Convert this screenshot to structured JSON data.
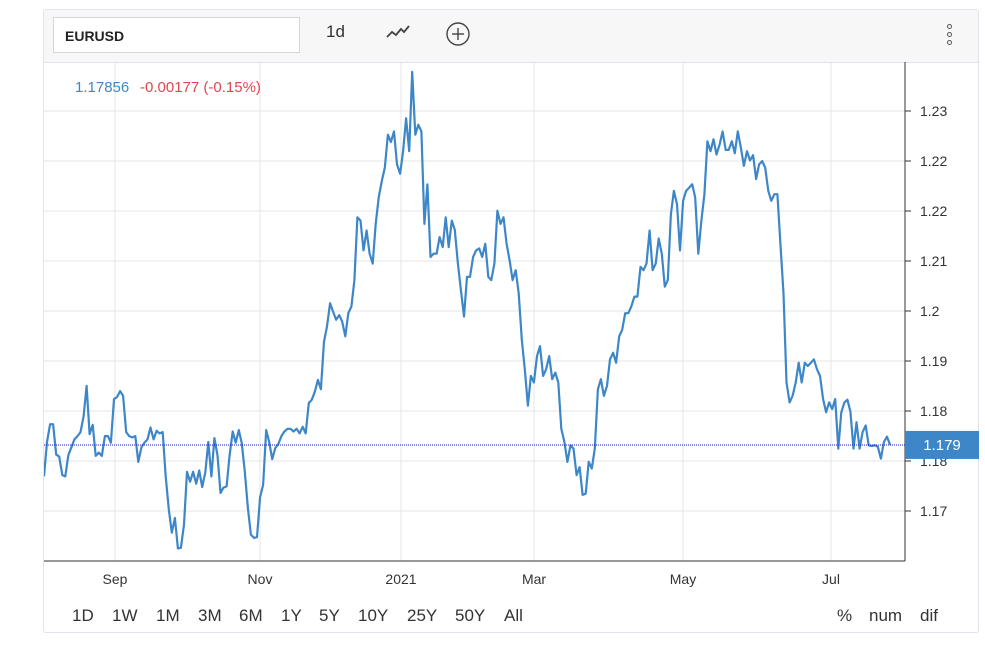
{
  "toolbar": {
    "symbol": "EURUSD",
    "interval": "1d",
    "icons": [
      "line-chart-style-icon",
      "add-compare-icon",
      "more-options-icon"
    ]
  },
  "quote": {
    "price": "1.17856",
    "change": "-0.00177 (-0.15%)",
    "price_color": "#3d87c8",
    "change_color": "#e0474c"
  },
  "price_label": "1.179",
  "ranges": [
    "1D",
    "1W",
    "1M",
    "3M",
    "6M",
    "1Y",
    "5Y",
    "10Y",
    "25Y",
    "50Y",
    "All"
  ],
  "modes": [
    "%",
    "num",
    "dif"
  ],
  "colors": {
    "line": "#3d87c8",
    "price_tag": "#3d87c8",
    "grid": "#e6e6e6"
  },
  "chart_data": {
    "type": "line",
    "x_tick_labels": [
      "Sep",
      "Nov",
      "2021",
      "Mar",
      "May",
      "Jul"
    ],
    "y_tick_labels": [
      "1.17",
      "1.18",
      "1.18",
      "1.19",
      "1.2",
      "1.21",
      "1.22",
      "1.22",
      "1.23"
    ],
    "ylim": [
      1.161,
      1.2365
    ],
    "grid": true,
    "last_value": 1.17856,
    "series": [
      {
        "values": [
          1.1738,
          1.179,
          1.1817,
          1.1817,
          1.1771,
          1.1768,
          1.174,
          1.1738,
          1.177,
          1.1782,
          1.1794,
          1.1799,
          1.1805,
          1.1829,
          1.1875,
          1.1802,
          1.1816,
          1.1769,
          1.1774,
          1.1769,
          1.1799,
          1.1799,
          1.1789,
          1.1855,
          1.1858,
          1.1867,
          1.186,
          1.1805,
          1.1799,
          1.1797,
          1.1799,
          1.176,
          1.1782,
          1.1789,
          1.1794,
          1.1812,
          1.1794,
          1.1807,
          1.1803,
          1.1805,
          1.1738,
          1.1688,
          1.1653,
          1.1675,
          1.1629,
          1.163,
          1.1665,
          1.1745,
          1.173,
          1.1745,
          1.1727,
          1.1747,
          1.1722,
          1.1744,
          1.179,
          1.1738,
          1.1796,
          1.177,
          1.1713,
          1.1721,
          1.1723,
          1.177,
          1.1806,
          1.1789,
          1.1808,
          1.1788,
          1.1745,
          1.169,
          1.165,
          1.1645,
          1.1646,
          1.1707,
          1.1725,
          1.1808,
          1.179,
          1.1764,
          1.1781,
          1.1787,
          1.1799,
          1.1806,
          1.181,
          1.181,
          1.1806,
          1.181,
          1.1803,
          1.1813,
          1.1803,
          1.1849,
          1.1854,
          1.1866,
          1.1884,
          1.187,
          1.1942,
          1.1965,
          1.2,
          1.1987,
          1.1975,
          1.1982,
          1.1972,
          1.195,
          1.1985,
          1.1995,
          1.2035,
          1.213,
          1.2125,
          1.208,
          1.211,
          1.2075,
          1.206,
          1.212,
          1.216,
          1.2185,
          1.2205,
          1.2255,
          1.2244,
          1.226,
          1.221,
          1.2196,
          1.223,
          1.228,
          1.223,
          1.235,
          1.2255,
          1.227,
          1.226,
          1.212,
          1.218,
          1.207,
          1.2075,
          1.2075,
          1.21,
          1.2085,
          1.213,
          1.2085,
          1.2125,
          1.2111,
          1.206,
          1.202,
          1.198,
          1.204,
          1.204,
          1.207,
          1.208,
          1.2083,
          1.207,
          1.209,
          1.204,
          1.2035,
          1.206,
          1.214,
          1.212,
          1.213,
          1.209,
          1.2065,
          1.2035,
          1.205,
          1.2015,
          1.1945,
          1.19,
          1.1845,
          1.189,
          1.188,
          1.192,
          1.1935,
          1.189,
          1.19,
          1.192,
          1.1885,
          1.1895,
          1.188,
          1.181,
          1.179,
          1.176,
          1.1785,
          1.178,
          1.174,
          1.1752,
          1.171,
          1.1712,
          1.176,
          1.175,
          1.178,
          1.187,
          1.1885,
          1.186,
          1.1875,
          1.1915,
          1.1925,
          1.191,
          1.195,
          1.196,
          1.1985,
          1.1985,
          1.1995,
          1.201,
          1.201,
          1.2055,
          1.205,
          1.206,
          1.211,
          1.205,
          1.206,
          1.2098,
          1.2075,
          1.2025,
          1.2035,
          1.2135,
          1.217,
          1.215,
          1.208,
          1.2155,
          1.217,
          1.2175,
          1.218,
          1.216,
          1.2075,
          1.2124,
          1.2165,
          1.2245,
          1.223,
          1.2248,
          1.2225,
          1.224,
          1.226,
          1.2232,
          1.2232,
          1.2245,
          1.2227,
          1.226,
          1.2235,
          1.2208,
          1.223,
          1.2216,
          1.2224,
          1.2188,
          1.221,
          1.2215,
          1.2205,
          1.217,
          1.2155,
          1.2165,
          1.2165,
          1.209,
          1.2015,
          1.188,
          1.185,
          1.186,
          1.188,
          1.191,
          1.188,
          1.191,
          1.1905,
          1.191,
          1.1915,
          1.19,
          1.189,
          1.1855,
          1.1835,
          1.185,
          1.184,
          1.1855,
          1.178,
          1.1835,
          1.185,
          1.1854,
          1.1836,
          1.178,
          1.182,
          1.178,
          1.1805,
          1.1815,
          1.1785,
          1.1784,
          1.1785,
          1.1783,
          1.1765,
          1.179,
          1.1798,
          1.1786
        ]
      }
    ]
  }
}
